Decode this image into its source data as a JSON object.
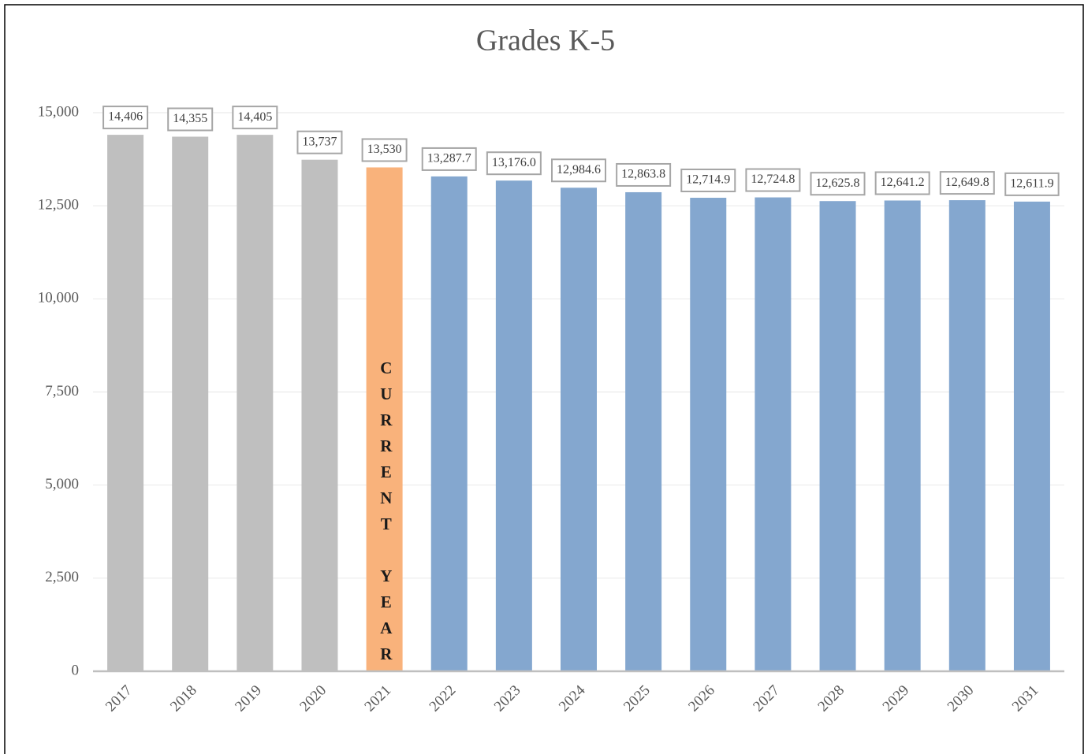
{
  "chart_data": {
    "type": "bar",
    "title": "Grades K-5",
    "categories": [
      "2017",
      "2018",
      "2019",
      "2020",
      "2021",
      "2022",
      "2023",
      "2024",
      "2025",
      "2026",
      "2027",
      "2028",
      "2029",
      "2030",
      "2031"
    ],
    "values": [
      14406,
      14355,
      14405,
      13737,
      13530,
      13287.7,
      13176.0,
      12984.6,
      12863.8,
      12714.9,
      12724.8,
      12625.8,
      12641.2,
      12649.8,
      12611.9
    ],
    "value_labels": [
      "14,406",
      "14,355",
      "14,405",
      "13,737",
      "13,530",
      "13,287.7",
      "13,176.0",
      "12,984.6",
      "12,863.8",
      "12,714.9",
      "12,724.8",
      "12,625.8",
      "12,641.2",
      "12,649.8",
      "12,611.9"
    ],
    "colors": [
      "#bfbfbf",
      "#bfbfbf",
      "#bfbfbf",
      "#bfbfbf",
      "#f9b27b",
      "#84a7cf",
      "#84a7cf",
      "#84a7cf",
      "#84a7cf",
      "#84a7cf",
      "#84a7cf",
      "#84a7cf",
      "#84a7cf",
      "#84a7cf",
      "#84a7cf"
    ],
    "annotations": [
      {
        "text": "CURRENT YEAR",
        "category": "2021"
      }
    ],
    "ylim": [
      0,
      15000
    ],
    "yticks": [
      0,
      {
        "value": 2500,
        "label": "2,500"
      },
      {
        "value": 5000,
        "label": "5,000"
      },
      {
        "value": 7500,
        "label": "7,500"
      },
      {
        "value": 10000,
        "label": "10,000"
      },
      {
        "value": 12500,
        "label": "12,500"
      },
      {
        "value": 15000,
        "label": "15,000"
      }
    ],
    "grid": true
  }
}
